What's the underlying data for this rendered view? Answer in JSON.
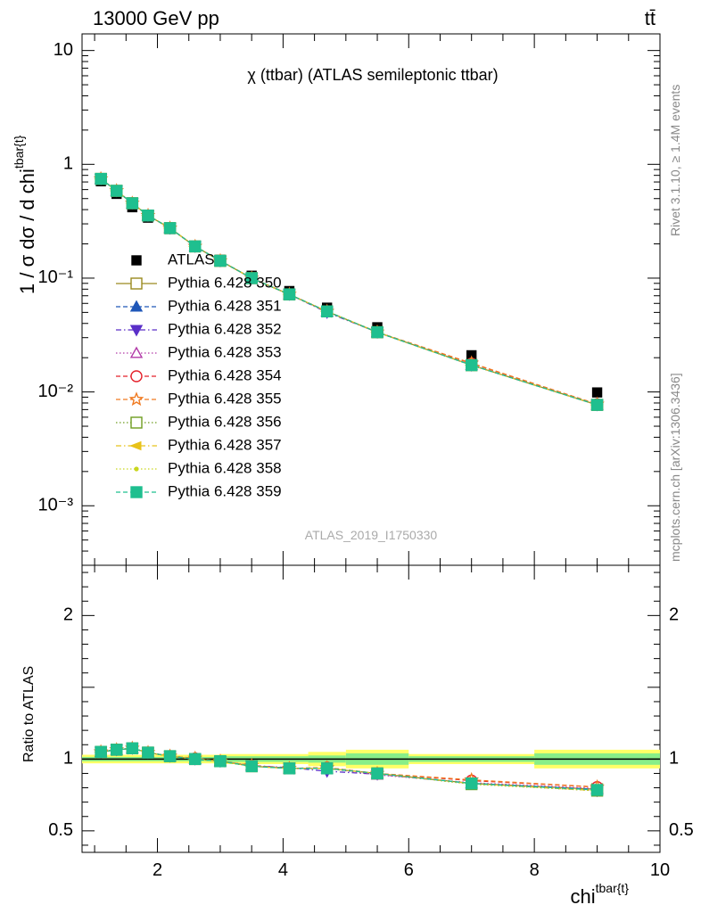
{
  "header": {
    "energy_label": "13000 GeV pp",
    "process_label": "tt̄",
    "plot_title": "χ (ttbar) (ATLAS semileptonic ttbar)",
    "side_label_top": "Rivet 3.1.10, ≥ 1.4M events",
    "side_label_bottom": "mcplots.cern.ch [arXiv:1306.3436]",
    "analysis_id": "ATLAS_2019_I1750330"
  },
  "chart_data": [
    {
      "type": "scatter",
      "panel": "main",
      "ylabel": "1 / σ dσ / d chi",
      "ylabel_superscript": "tbar{t}",
      "yscale": "log",
      "xlim": [
        0.8,
        10.0
      ],
      "ylim": [
        0.0003,
        14
      ],
      "y_tick_labels": [
        "10⁻³",
        "10⁻²",
        "10⁻¹",
        "1",
        "10"
      ],
      "legend_position": "middle-left",
      "x": [
        1.1,
        1.35,
        1.6,
        1.85,
        2.2,
        2.6,
        3.0,
        3.5,
        4.1,
        4.7,
        5.5,
        7.0,
        9.0
      ],
      "series": [
        {
          "name": "ATLAS",
          "color": "#000000",
          "marker": "square-filled",
          "style": "none",
          "values": [
            0.71,
            0.55,
            0.42,
            0.34,
            0.27,
            0.19,
            0.145,
            0.105,
            0.077,
            0.055,
            0.037,
            0.021,
            0.0099
          ]
        },
        {
          "name": "Pythia 6.428 350",
          "color": "#9a8a1e",
          "marker": "square-open",
          "style": "solid",
          "values": [
            0.745,
            0.585,
            0.455,
            0.355,
            0.275,
            0.19,
            0.142,
            0.1,
            0.072,
            0.051,
            0.0335,
            0.0172,
            0.0077
          ]
        },
        {
          "name": "Pythia 6.428 351",
          "color": "#1f57b8",
          "marker": "triangle-up-filled",
          "style": "dashed",
          "values": [
            0.745,
            0.585,
            0.455,
            0.355,
            0.275,
            0.19,
            0.142,
            0.1,
            0.072,
            0.051,
            0.0335,
            0.0172,
            0.0077
          ]
        },
        {
          "name": "Pythia 6.428 352",
          "color": "#5a2fc8",
          "marker": "triangle-down-filled",
          "style": "dashdot",
          "values": [
            0.745,
            0.585,
            0.455,
            0.355,
            0.275,
            0.19,
            0.142,
            0.1,
            0.072,
            0.05,
            0.0335,
            0.0172,
            0.0077
          ]
        },
        {
          "name": "Pythia 6.428 353",
          "color": "#b23aa8",
          "marker": "triangle-up-open",
          "style": "dotted",
          "values": [
            0.745,
            0.585,
            0.455,
            0.355,
            0.275,
            0.19,
            0.142,
            0.1,
            0.072,
            0.051,
            0.0335,
            0.0172,
            0.0077
          ]
        },
        {
          "name": "Pythia 6.428 354",
          "color": "#e4202a",
          "marker": "circle-open",
          "style": "dashed",
          "values": [
            0.745,
            0.585,
            0.455,
            0.355,
            0.275,
            0.19,
            0.142,
            0.1,
            0.072,
            0.051,
            0.0335,
            0.0178,
            0.0078
          ]
        },
        {
          "name": "Pythia 6.428 355",
          "color": "#f07a21",
          "marker": "star-open",
          "style": "dashed",
          "values": [
            0.745,
            0.585,
            0.455,
            0.355,
            0.275,
            0.19,
            0.142,
            0.1,
            0.072,
            0.051,
            0.0335,
            0.0179,
            0.0078
          ]
        },
        {
          "name": "Pythia 6.428 356",
          "color": "#6e9d20",
          "marker": "square-open",
          "style": "dotted",
          "values": [
            0.745,
            0.585,
            0.455,
            0.355,
            0.275,
            0.19,
            0.142,
            0.1,
            0.072,
            0.051,
            0.0335,
            0.0172,
            0.0077
          ]
        },
        {
          "name": "Pythia 6.428 357",
          "color": "#e8c21a",
          "marker": "triangle-left-filled",
          "style": "dashdot",
          "values": [
            0.745,
            0.585,
            0.455,
            0.355,
            0.275,
            0.19,
            0.142,
            0.1,
            0.072,
            0.051,
            0.0335,
            0.0172,
            0.0077
          ]
        },
        {
          "name": "Pythia 6.428 358",
          "color": "#c9d61e",
          "marker": "dot-filled",
          "style": "dotted",
          "values": [
            0.745,
            0.585,
            0.455,
            0.355,
            0.275,
            0.19,
            0.142,
            0.1,
            0.072,
            0.051,
            0.0335,
            0.0172,
            0.0077
          ]
        },
        {
          "name": "Pythia 6.428 359",
          "color": "#1fbf8f",
          "marker": "square-filled",
          "style": "dashed",
          "values": [
            0.745,
            0.585,
            0.455,
            0.355,
            0.275,
            0.19,
            0.142,
            0.1,
            0.072,
            0.051,
            0.0335,
            0.0172,
            0.0077
          ]
        }
      ]
    },
    {
      "type": "line",
      "panel": "ratio",
      "ylabel": "Ratio to ATLAS",
      "xlabel": "chi",
      "xlabel_superscript": "tbar{t}",
      "xlim": [
        0.8,
        10.0
      ],
      "ylim": [
        0.35,
        2.35
      ],
      "x_ticks": [
        2,
        4,
        6,
        8,
        10
      ],
      "y_ticks": [
        0.5,
        1,
        2
      ],
      "reference_line": 1,
      "band_colors": {
        "outer": "#ffff66",
        "inner": "#88ee88"
      },
      "band": [
        {
          "x0": 0.8,
          "x1": 3.0,
          "outer": 0.03,
          "inner": 0.015
        },
        {
          "x0": 3.0,
          "x1": 4.4,
          "outer": 0.035,
          "inner": 0.02
        },
        {
          "x0": 4.4,
          "x1": 5.0,
          "outer": 0.05,
          "inner": 0.025
        },
        {
          "x0": 5.0,
          "x1": 6.0,
          "outer": 0.065,
          "inner": 0.04
        },
        {
          "x0": 6.0,
          "x1": 8.0,
          "outer": 0.035,
          "inner": 0.02
        },
        {
          "x0": 8.0,
          "x1": 10.0,
          "outer": 0.065,
          "inner": 0.04
        }
      ],
      "x": [
        1.1,
        1.35,
        1.6,
        1.85,
        2.2,
        2.6,
        3.0,
        3.5,
        4.1,
        4.7,
        5.5,
        7.0,
        9.0
      ],
      "series": [
        {
          "name": "Pythia 6.428 350",
          "values": [
            1.05,
            1.065,
            1.075,
            1.045,
            1.02,
            1.0,
            0.985,
            0.95,
            0.935,
            0.935,
            0.9,
            0.83,
            0.79
          ]
        },
        {
          "name": "Pythia 6.428 351",
          "values": [
            1.05,
            1.065,
            1.075,
            1.045,
            1.02,
            1.0,
            0.985,
            0.955,
            0.935,
            0.935,
            0.9,
            0.83,
            0.79
          ]
        },
        {
          "name": "Pythia 6.428 352",
          "values": [
            1.05,
            1.065,
            1.075,
            1.045,
            1.02,
            1.0,
            0.985,
            0.955,
            0.94,
            0.915,
            0.895,
            0.83,
            0.78
          ]
        },
        {
          "name": "Pythia 6.428 353",
          "values": [
            1.05,
            1.065,
            1.075,
            1.045,
            1.02,
            1.0,
            0.985,
            0.955,
            0.935,
            0.935,
            0.89,
            0.835,
            0.795
          ]
        },
        {
          "name": "Pythia 6.428 354",
          "values": [
            1.05,
            1.065,
            1.075,
            1.045,
            1.02,
            1.005,
            0.985,
            0.955,
            0.935,
            0.94,
            0.9,
            0.85,
            0.805
          ]
        },
        {
          "name": "Pythia 6.428 355",
          "values": [
            1.05,
            1.065,
            1.075,
            1.045,
            1.02,
            1.005,
            0.985,
            0.955,
            0.935,
            0.94,
            0.9,
            0.855,
            0.805
          ]
        },
        {
          "name": "Pythia 6.428 356",
          "values": [
            1.05,
            1.065,
            1.075,
            1.045,
            1.02,
            1.0,
            0.985,
            0.95,
            0.935,
            0.935,
            0.9,
            0.825,
            0.78
          ]
        },
        {
          "name": "Pythia 6.428 357",
          "values": [
            1.05,
            1.065,
            1.075,
            1.045,
            1.02,
            1.0,
            0.985,
            0.95,
            0.935,
            0.935,
            0.9,
            0.83,
            0.78
          ]
        },
        {
          "name": "Pythia 6.428 358",
          "values": [
            1.05,
            1.065,
            1.075,
            1.045,
            1.02,
            1.0,
            0.985,
            0.95,
            0.935,
            0.935,
            0.9,
            0.825,
            0.78
          ]
        },
        {
          "name": "Pythia 6.428 359",
          "values": [
            1.05,
            1.065,
            1.075,
            1.045,
            1.02,
            1.0,
            0.985,
            0.95,
            0.935,
            0.935,
            0.9,
            0.83,
            0.785
          ]
        }
      ]
    }
  ]
}
